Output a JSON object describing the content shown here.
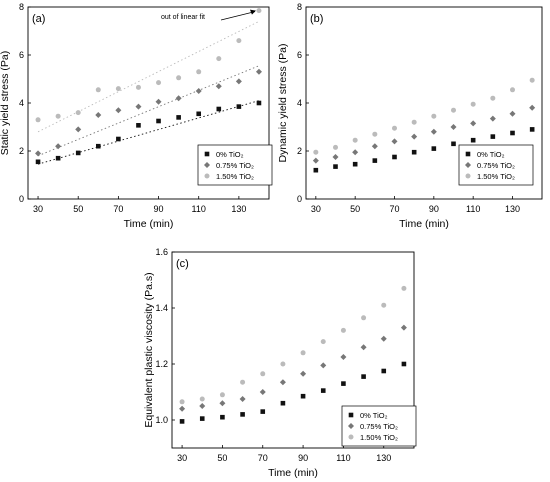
{
  "chart_data": [
    {
      "type": "scatter",
      "panel_label": "(a)",
      "xlabel": "Time (min)",
      "ylabel": "Static yield stress (Pa)",
      "xlim": [
        25,
        145
      ],
      "ylim": [
        0,
        8
      ],
      "xticks": [
        30,
        50,
        70,
        90,
        110,
        130
      ],
      "yticks": [
        0,
        2,
        4,
        6,
        8
      ],
      "ytick_labels": [
        "0",
        "2",
        "4",
        "6",
        "8"
      ],
      "x": [
        30,
        40,
        50,
        60,
        70,
        80,
        90,
        100,
        110,
        120,
        130,
        140
      ],
      "series": [
        {
          "name": "0% TiO₂",
          "marker": "square",
          "color": "#111111",
          "values": [
            1.55,
            1.7,
            1.92,
            2.2,
            2.5,
            3.07,
            3.25,
            3.4,
            3.55,
            3.75,
            3.85,
            4.0
          ],
          "fit": [
            1.45,
            4.1
          ]
        },
        {
          "name": "0.75% TiO₂",
          "marker": "diamond",
          "color": "#777777",
          "values": [
            1.9,
            2.2,
            2.9,
            3.5,
            3.7,
            3.85,
            4.05,
            4.2,
            4.5,
            4.7,
            4.9,
            5.3
          ],
          "fit": [
            1.8,
            5.55
          ]
        },
        {
          "name": "1.50% TiO₂",
          "marker": "circle",
          "color": "#bbbbbb",
          "values": [
            3.3,
            3.45,
            3.6,
            4.55,
            4.6,
            4.65,
            4.85,
            5.05,
            5.3,
            5.85,
            6.6,
            7.85
          ],
          "fit": [
            2.8,
            7.4
          ]
        }
      ],
      "annotation": "out of linear fit",
      "legend": "bottom-right"
    },
    {
      "type": "scatter",
      "panel_label": "(b)",
      "xlabel": "Time (min)",
      "ylabel": "Dynamic yield stress (Pa)",
      "xlim": [
        25,
        145
      ],
      "ylim": [
        0,
        8
      ],
      "xticks": [
        30,
        50,
        70,
        90,
        110,
        130
      ],
      "yticks": [
        0,
        2,
        4,
        6,
        8
      ],
      "ytick_labels": [
        "0",
        "2",
        "4",
        "6",
        "8"
      ],
      "x": [
        30,
        40,
        50,
        60,
        70,
        80,
        90,
        100,
        110,
        120,
        130,
        140
      ],
      "series": [
        {
          "name": "0% TiO₂",
          "marker": "square",
          "color": "#111111",
          "values": [
            1.2,
            1.35,
            1.45,
            1.6,
            1.75,
            1.95,
            2.1,
            2.3,
            2.45,
            2.6,
            2.75,
            2.9
          ]
        },
        {
          "name": "0.75% TiO₂",
          "marker": "diamond",
          "color": "#777777",
          "values": [
            1.6,
            1.75,
            1.95,
            2.2,
            2.4,
            2.6,
            2.8,
            3.0,
            3.15,
            3.35,
            3.55,
            3.8
          ]
        },
        {
          "name": "1.50% TiO₂",
          "marker": "circle",
          "color": "#bbbbbb",
          "values": [
            1.95,
            2.15,
            2.45,
            2.7,
            2.95,
            3.2,
            3.45,
            3.7,
            3.95,
            4.2,
            4.55,
            4.95
          ]
        }
      ],
      "legend": "bottom-right"
    },
    {
      "type": "scatter",
      "panel_label": "(c)",
      "xlabel": "Time (min)",
      "ylabel": "Equivalent plastic viscosity (Pa.s)",
      "xlim": [
        25,
        145
      ],
      "ylim": [
        0.9,
        1.6
      ],
      "xticks": [
        30,
        50,
        70,
        90,
        110,
        130
      ],
      "yticks": [
        1.0,
        1.2,
        1.4,
        1.6
      ],
      "ytick_labels": [
        "1.0",
        "1.2",
        "1.4",
        "1.6"
      ],
      "x": [
        30,
        40,
        50,
        60,
        70,
        80,
        90,
        100,
        110,
        120,
        130,
        140
      ],
      "series": [
        {
          "name": "0% TiO₂",
          "marker": "square",
          "color": "#111111",
          "values": [
            0.995,
            1.005,
            1.01,
            1.02,
            1.03,
            1.06,
            1.085,
            1.105,
            1.13,
            1.155,
            1.175,
            1.2
          ]
        },
        {
          "name": "0.75% TiO₂",
          "marker": "diamond",
          "color": "#777777",
          "values": [
            1.04,
            1.05,
            1.06,
            1.075,
            1.1,
            1.135,
            1.165,
            1.195,
            1.225,
            1.26,
            1.29,
            1.33
          ]
        },
        {
          "name": "1.50% TiO₂",
          "marker": "circle",
          "color": "#bbbbbb",
          "values": [
            1.065,
            1.075,
            1.09,
            1.135,
            1.165,
            1.2,
            1.24,
            1.28,
            1.32,
            1.365,
            1.41,
            1.47
          ]
        }
      ],
      "legend": "bottom-right"
    }
  ]
}
